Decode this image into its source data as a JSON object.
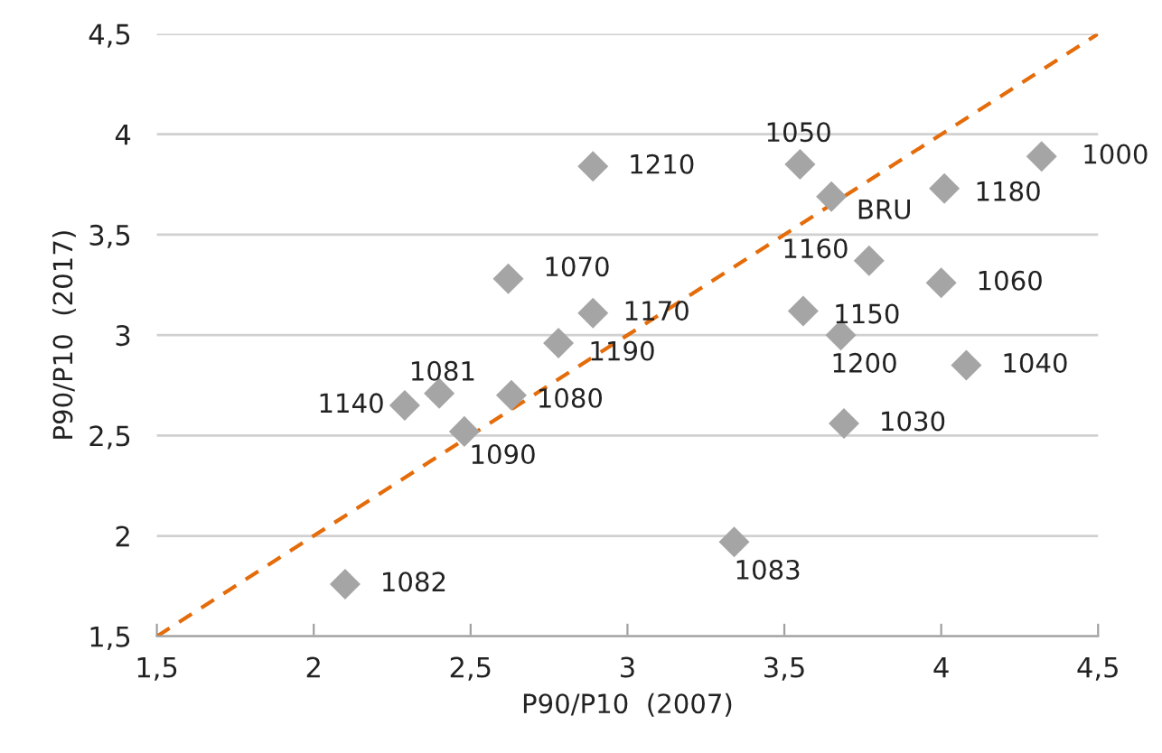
{
  "chart_data": {
    "type": "scatter",
    "xlabel": "P90/P10  (2007)",
    "ylabel": "P90/P10  (2017)",
    "xlim": [
      1.5,
      4.5
    ],
    "ylim": [
      1.5,
      4.5
    ],
    "xticks": [
      {
        "value": 1.5,
        "label": "1,5"
      },
      2,
      {
        "value": 2.5,
        "label": "2,5"
      },
      3,
      {
        "value": 3.5,
        "label": "3,5"
      },
      4,
      {
        "value": 4.5,
        "label": "4,5"
      }
    ],
    "yticks": [
      {
        "value": 1.5,
        "label": "1,5"
      },
      2,
      {
        "value": 2.5,
        "label": "2,5"
      },
      3,
      {
        "value": 3.5,
        "label": "3,5"
      },
      4,
      {
        "value": 4.5,
        "label": "4,5"
      }
    ],
    "grid": "y",
    "legend": false,
    "series": [
      {
        "color": "#a5a5a5",
        "marker": "diamond",
        "x": [
          2.1,
          2.29,
          2.4,
          2.48,
          2.63,
          2.62,
          2.78,
          2.89,
          2.89,
          3.55,
          3.65,
          4.01,
          4.32,
          3.77,
          4.0,
          3.56,
          3.68,
          4.08,
          3.69,
          3.34
        ],
        "values": [
          1.76,
          2.65,
          2.71,
          2.52,
          2.7,
          3.28,
          2.96,
          3.11,
          3.84,
          3.85,
          3.69,
          3.73,
          3.89,
          3.37,
          3.26,
          3.12,
          3.0,
          2.85,
          2.56,
          1.97
        ]
      },
      {
        "type": "line",
        "color": "#e46c0a",
        "line_style": "dashed",
        "marker": "none",
        "x": [
          1.5,
          4.5
        ],
        "values": [
          1.5,
          4.5
        ]
      }
    ],
    "annotations": [
      {
        "text": "1082",
        "x": 2.1,
        "y": 1.76
      },
      {
        "text": "1140",
        "x": 2.29,
        "y": 2.65
      },
      {
        "text": "1081",
        "x": 2.4,
        "y": 2.71
      },
      {
        "text": "1090",
        "x": 2.48,
        "y": 2.52
      },
      {
        "text": "1080",
        "x": 2.63,
        "y": 2.7
      },
      {
        "text": "1070",
        "x": 2.62,
        "y": 3.28
      },
      {
        "text": "1190",
        "x": 2.78,
        "y": 2.96
      },
      {
        "text": "1170",
        "x": 2.89,
        "y": 3.11
      },
      {
        "text": "1210",
        "x": 2.89,
        "y": 3.84
      },
      {
        "text": "1050",
        "x": 3.55,
        "y": 3.85
      },
      {
        "text": "BRU",
        "x": 3.65,
        "y": 3.69
      },
      {
        "text": "1180",
        "x": 4.01,
        "y": 3.73
      },
      {
        "text": "1000",
        "x": 4.32,
        "y": 3.89
      },
      {
        "text": "1160",
        "x": 3.77,
        "y": 3.37
      },
      {
        "text": "1060",
        "x": 4.0,
        "y": 3.26
      },
      {
        "text": "1150",
        "x": 3.56,
        "y": 3.12
      },
      {
        "text": "1200",
        "x": 3.68,
        "y": 3.0
      },
      {
        "text": "1040",
        "x": 4.08,
        "y": 2.85
      },
      {
        "text": "1030",
        "x": 3.69,
        "y": 2.56
      },
      {
        "text": "1083",
        "x": 3.34,
        "y": 1.97
      }
    ]
  }
}
